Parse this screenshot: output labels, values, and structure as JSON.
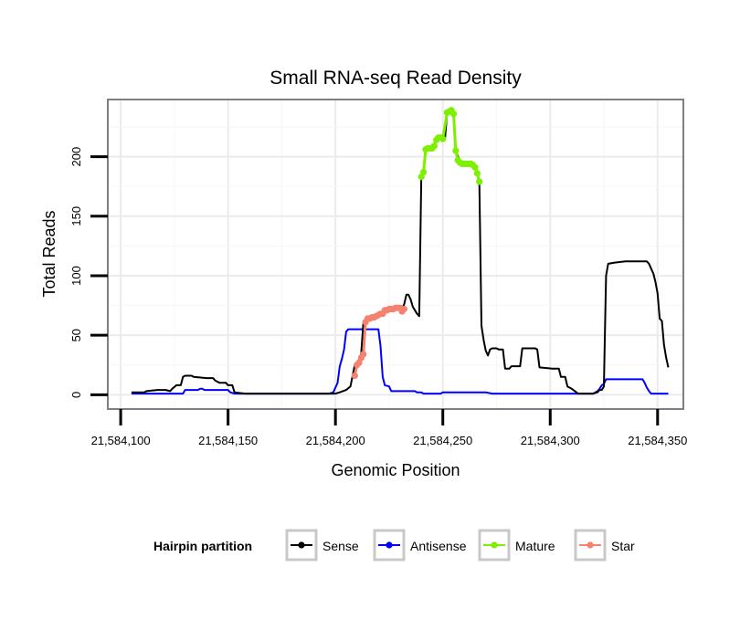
{
  "chart_data": {
    "type": "line",
    "title": "Small RNA-seq Read Density",
    "xlabel": "Genomic Position",
    "ylabel": "Total Reads",
    "xlim": [
      21584094,
      21584362
    ],
    "ylim": [
      -12,
      248
    ],
    "x_ticks": [
      21584100,
      21584150,
      21584200,
      21584250,
      21584300,
      21584350
    ],
    "x_tick_labels": [
      "21,584,100",
      "21,584,150",
      "21,584,200",
      "21,584,250",
      "21,584,300",
      "21,584,350"
    ],
    "y_ticks": [
      0,
      50,
      100,
      150,
      200
    ],
    "y_tick_labels": [
      "0",
      "50",
      "100",
      "150",
      "200"
    ],
    "grid": true,
    "legend": {
      "title": "Hairpin partition",
      "position": "bottom",
      "entries": [
        "Sense",
        "Antisense",
        "Mature",
        "Star"
      ]
    },
    "series": [
      {
        "name": "Sense",
        "color": "#000000",
        "points": [
          [
            21584105,
            2
          ],
          [
            21584111,
            2
          ],
          [
            21584112,
            3
          ],
          [
            21584117,
            4
          ],
          [
            21584121,
            4
          ],
          [
            21584123,
            3
          ],
          [
            21584124,
            5
          ],
          [
            21584126,
            8
          ],
          [
            21584128,
            8
          ],
          [
            21584129,
            15
          ],
          [
            21584130,
            16
          ],
          [
            21584133,
            16
          ],
          [
            21584134,
            15
          ],
          [
            21584140,
            14
          ],
          [
            21584143,
            14
          ],
          [
            21584144,
            12
          ],
          [
            21584146,
            10
          ],
          [
            21584149,
            10
          ],
          [
            21584150,
            8
          ],
          [
            21584152,
            8
          ],
          [
            21584153,
            2
          ],
          [
            21584158,
            1
          ],
          [
            21584200,
            1
          ],
          [
            21584202,
            2
          ],
          [
            21584205,
            4
          ],
          [
            21584207,
            7
          ],
          [
            21584208,
            16
          ],
          [
            21584209,
            25
          ],
          [
            21584211,
            28
          ],
          [
            21584212,
            35
          ],
          [
            21584213,
            60
          ],
          [
            21584215,
            64
          ],
          [
            21584218,
            66
          ],
          [
            21584222,
            70
          ],
          [
            21584226,
            72
          ],
          [
            21584230,
            73
          ],
          [
            21584231,
            72
          ],
          [
            21584232,
            76
          ],
          [
            21584233,
            84
          ],
          [
            21584234,
            84
          ],
          [
            21584235,
            80
          ],
          [
            21584236,
            74
          ],
          [
            21584238,
            68
          ],
          [
            21584239,
            66
          ],
          [
            21584240,
            185
          ],
          [
            21584241,
            187
          ],
          [
            21584242,
            207
          ],
          [
            21584244,
            207
          ],
          [
            21584246,
            209
          ],
          [
            21584247,
            216
          ],
          [
            21584250,
            216
          ],
          [
            21584251,
            215
          ],
          [
            21584252,
            237
          ],
          [
            21584254,
            239
          ],
          [
            21584255,
            237
          ],
          [
            21584256,
            205
          ],
          [
            21584258,
            196
          ],
          [
            21584260,
            194
          ],
          [
            21584263,
            194
          ],
          [
            21584264,
            195
          ],
          [
            21584265,
            193
          ],
          [
            21584266,
            187
          ],
          [
            21584267,
            178
          ],
          [
            21584268,
            58
          ],
          [
            21584269,
            46
          ],
          [
            21584270,
            37
          ],
          [
            21584271,
            33
          ],
          [
            21584272,
            38
          ],
          [
            21584273,
            39
          ],
          [
            21584275,
            39
          ],
          [
            21584276,
            38
          ],
          [
            21584278,
            38
          ],
          [
            21584279,
            22
          ],
          [
            21584281,
            22
          ],
          [
            21584282,
            24
          ],
          [
            21584286,
            24
          ],
          [
            21584287,
            39
          ],
          [
            21584293,
            39
          ],
          [
            21584294,
            38
          ],
          [
            21584295,
            23
          ],
          [
            21584301,
            22
          ],
          [
            21584304,
            22
          ],
          [
            21584305,
            15
          ],
          [
            21584307,
            15
          ],
          [
            21584308,
            7
          ],
          [
            21584310,
            5
          ],
          [
            21584313,
            1
          ],
          [
            21584320,
            1
          ],
          [
            21584322,
            2
          ],
          [
            21584323,
            4
          ],
          [
            21584324,
            4
          ],
          [
            21584325,
            7
          ],
          [
            21584326,
            100
          ],
          [
            21584327,
            110
          ],
          [
            21584330,
            111
          ],
          [
            21584335,
            112
          ],
          [
            21584345,
            112
          ],
          [
            21584346,
            110
          ],
          [
            21584347,
            106
          ],
          [
            21584348,
            102
          ],
          [
            21584349,
            95
          ],
          [
            21584350,
            85
          ],
          [
            21584351,
            64
          ],
          [
            21584352,
            62
          ],
          [
            21584353,
            42
          ],
          [
            21584354,
            31
          ],
          [
            21584355,
            23
          ]
        ]
      },
      {
        "name": "Antisense",
        "color": "#0000ff",
        "points": [
          [
            21584105,
            1
          ],
          [
            21584118,
            1
          ],
          [
            21584120,
            1
          ],
          [
            21584129,
            1
          ],
          [
            21584130,
            4
          ],
          [
            21584136,
            4
          ],
          [
            21584137,
            5
          ],
          [
            21584138,
            5
          ],
          [
            21584139,
            4
          ],
          [
            21584150,
            4
          ],
          [
            21584151,
            2
          ],
          [
            21584153,
            1
          ],
          [
            21584158,
            1
          ],
          [
            21584197,
            1
          ],
          [
            21584199,
            2
          ],
          [
            21584201,
            10
          ],
          [
            21584202,
            24
          ],
          [
            21584203,
            30
          ],
          [
            21584204,
            38
          ],
          [
            21584205,
            53
          ],
          [
            21584206,
            55
          ],
          [
            21584220,
            55
          ],
          [
            21584221,
            41
          ],
          [
            21584222,
            15
          ],
          [
            21584223,
            8
          ],
          [
            21584225,
            7
          ],
          [
            21584226,
            3
          ],
          [
            21584237,
            3
          ],
          [
            21584238,
            2
          ],
          [
            21584240,
            2
          ],
          [
            21584241,
            1
          ],
          [
            21584249,
            1
          ],
          [
            21584250,
            2
          ],
          [
            21584270,
            2
          ],
          [
            21584273,
            1
          ],
          [
            21584320,
            1
          ],
          [
            21584322,
            3
          ],
          [
            21584323,
            5
          ],
          [
            21584324,
            8
          ],
          [
            21584325,
            9
          ],
          [
            21584326,
            13
          ],
          [
            21584343,
            13
          ],
          [
            21584344,
            10
          ],
          [
            21584345,
            6
          ],
          [
            21584346,
            3
          ],
          [
            21584347,
            1
          ],
          [
            21584355,
            1
          ]
        ]
      },
      {
        "name": "Mature",
        "color": "#7cf000",
        "points": [
          [
            21584240,
            183
          ],
          [
            21584241,
            187
          ],
          [
            21584242,
            206
          ],
          [
            21584243,
            207
          ],
          [
            21584244,
            207
          ],
          [
            21584245,
            207
          ],
          [
            21584246,
            209
          ],
          [
            21584247,
            214
          ],
          [
            21584248,
            216
          ],
          [
            21584249,
            216
          ],
          [
            21584250,
            215
          ],
          [
            21584252,
            237
          ],
          [
            21584253,
            238
          ],
          [
            21584254,
            239
          ],
          [
            21584255,
            236
          ],
          [
            21584256,
            205
          ],
          [
            21584257,
            197
          ],
          [
            21584258,
            195
          ],
          [
            21584259,
            194
          ],
          [
            21584260,
            194
          ],
          [
            21584261,
            194
          ],
          [
            21584262,
            194
          ],
          [
            21584263,
            194
          ],
          [
            21584264,
            193
          ],
          [
            21584265,
            191
          ],
          [
            21584266,
            186
          ],
          [
            21584267,
            179
          ]
        ]
      },
      {
        "name": "Star",
        "color": "#f4826e",
        "points": [
          [
            21584209,
            16
          ],
          [
            21584210,
            25
          ],
          [
            21584211,
            27
          ],
          [
            21584212,
            31
          ],
          [
            21584213,
            34
          ],
          [
            21584214,
            61
          ],
          [
            21584215,
            64
          ],
          [
            21584216,
            64
          ],
          [
            21584217,
            65
          ],
          [
            21584218,
            65
          ],
          [
            21584219,
            66
          ],
          [
            21584220,
            67
          ],
          [
            21584221,
            68
          ],
          [
            21584222,
            68
          ],
          [
            21584223,
            71
          ],
          [
            21584224,
            71
          ],
          [
            21584225,
            72
          ],
          [
            21584226,
            72
          ],
          [
            21584227,
            72
          ],
          [
            21584228,
            73
          ],
          [
            21584229,
            73
          ],
          [
            21584230,
            73
          ],
          [
            21584231,
            70
          ],
          [
            21584232,
            72
          ]
        ]
      }
    ]
  }
}
